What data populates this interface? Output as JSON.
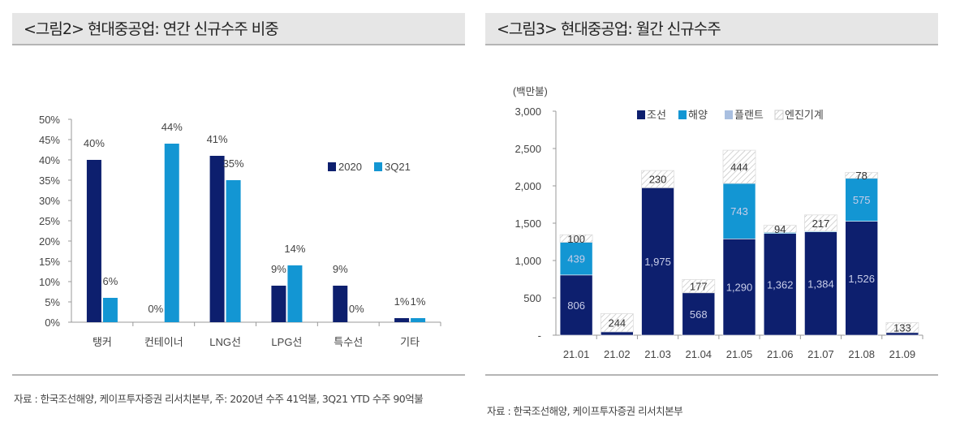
{
  "left": {
    "title": "<그림2> 현대중공업: 연간 신규수주 비중",
    "source": "자료 : 한국조선해양, 케이프투자증권 리서치본부, 주: 2020년 수주 41억불, 3Q21 YTD 수주 90억불"
  },
  "right": {
    "title": "<그림3> 현대중공업: 월간 신규수주",
    "source": "자료 : 한국조선해양, 케이프투자증권 리서치본부"
  },
  "chart_data": [
    {
      "type": "bar",
      "categories": [
        "탱커",
        "컨테이너",
        "LNG선",
        "LPG선",
        "특수선",
        "기타"
      ],
      "series": [
        {
          "name": "2020",
          "values": [
            40,
            0,
            41,
            9,
            9,
            1
          ],
          "labels": [
            "40%",
            "0%",
            "41%",
            "9%",
            "9%",
            "1%"
          ],
          "color": "#0d1f6e"
        },
        {
          "name": "3Q21",
          "values": [
            6,
            44,
            35,
            14,
            0,
            1
          ],
          "labels": [
            "6%",
            "44%",
            "35%",
            "14%",
            "0%",
            "1%"
          ],
          "color": "#1396d3"
        }
      ],
      "ylim": [
        0,
        50
      ],
      "yticks": [
        "0%",
        "5%",
        "10%",
        "15%",
        "20%",
        "25%",
        "30%",
        "35%",
        "40%",
        "45%",
        "50%"
      ],
      "legend": "right",
      "grid": false
    },
    {
      "type": "stacked-bar",
      "unit": "(백만불)",
      "categories": [
        "21.01",
        "21.02",
        "21.03",
        "21.04",
        "21.05",
        "21.06",
        "21.07",
        "21.08",
        "21.09"
      ],
      "series": [
        {
          "name": "조선",
          "values": [
            806,
            45,
            1975,
            568,
            1290,
            1362,
            1384,
            1526,
            35
          ],
          "labels": [
            "806",
            "",
            "1,975",
            "568",
            "1,290",
            "1,362",
            "1,384",
            "1,526",
            ""
          ],
          "color": "#0d1f6e"
        },
        {
          "name": "해양",
          "values": [
            439,
            0,
            0,
            0,
            743,
            15,
            10,
            575,
            0
          ],
          "labels": [
            "439",
            "",
            "",
            "",
            "743",
            "",
            "",
            "575",
            ""
          ],
          "color": "#1396d3"
        },
        {
          "name": "플랜트",
          "values": [
            0,
            0,
            0,
            0,
            0,
            0,
            0,
            0,
            0
          ],
          "labels": [
            "",
            "",
            "",
            "",
            "",
            "",
            "",
            "",
            ""
          ],
          "color": "#a9bfe0"
        },
        {
          "name": "엔진기계",
          "values": [
            100,
            244,
            230,
            177,
            444,
            94,
            217,
            78,
            133
          ],
          "labels": [
            "100",
            "244",
            "230",
            "177",
            "444",
            "94",
            "217",
            "78",
            "133"
          ],
          "color": "hatch"
        }
      ],
      "ylim": [
        0,
        3000
      ],
      "yticks": [
        "-",
        "500",
        "1,000",
        "1,500",
        "2,000",
        "2,500",
        "3,000"
      ],
      "legend": "top",
      "grid": false
    }
  ]
}
